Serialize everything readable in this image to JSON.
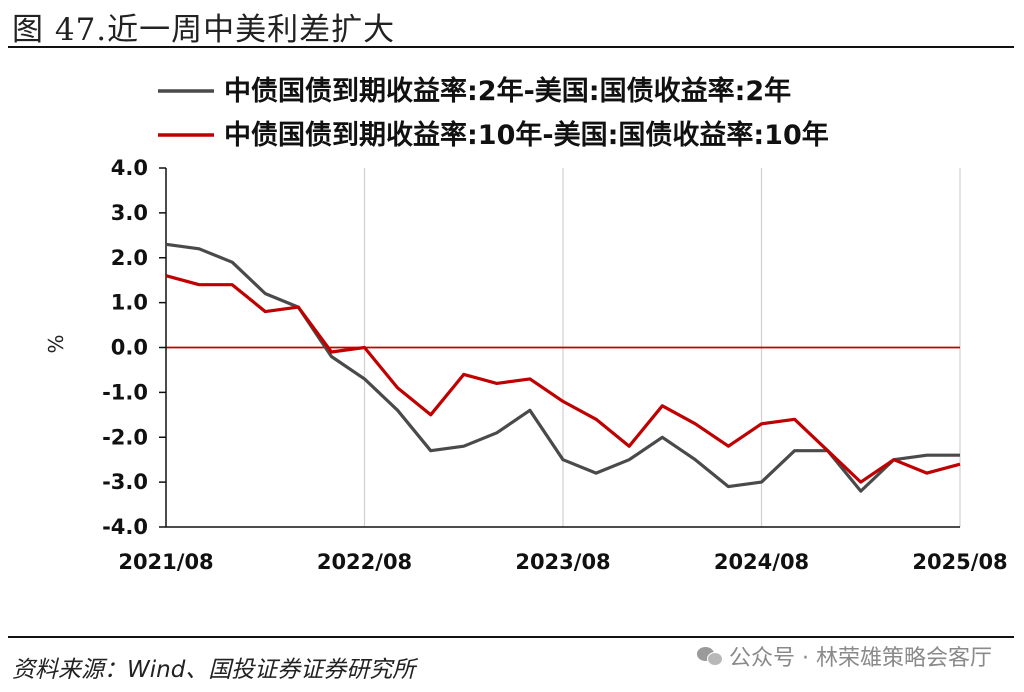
{
  "figure": {
    "title": "图 47.近一周中美利差扩大",
    "source": "资料来源：Wind、国投证券证券研究所",
    "watermark": "公众号 · 林荣雄策略会客厅"
  },
  "chart_data": {
    "type": "line",
    "ylabel": "%",
    "ylim": [
      -4.0,
      4.0
    ],
    "yticks": [
      "4.0",
      "3.0",
      "2.0",
      "1.0",
      "0.0",
      "-1.0",
      "-2.0",
      "-3.0",
      "-4.0"
    ],
    "xticks": [
      "2021/08",
      "2022/08",
      "2023/08",
      "2024/08",
      "2025/08"
    ],
    "grid": "vertical",
    "legend_position": "top",
    "colors": {
      "series_2y": "#4a4a4a",
      "series_10y": "#c00000",
      "zero_line": "#c00000"
    },
    "x": [
      "2021/08",
      "2021/10",
      "2021/12",
      "2022/02",
      "2022/04",
      "2022/06",
      "2022/08",
      "2022/10",
      "2022/12",
      "2023/02",
      "2023/04",
      "2023/06",
      "2023/08",
      "2023/10",
      "2023/12",
      "2024/02",
      "2024/04",
      "2024/06",
      "2024/08",
      "2024/10",
      "2024/12",
      "2025/02",
      "2025/04",
      "2025/06",
      "2025/08"
    ],
    "series": [
      {
        "name": "中债国债到期收益率:2年-美国:国债收益率:2年",
        "values": [
          2.3,
          2.2,
          1.9,
          1.2,
          0.9,
          -0.2,
          -0.7,
          -1.4,
          -2.3,
          -2.2,
          -1.9,
          -1.4,
          -2.5,
          -2.8,
          -2.5,
          -2.0,
          -2.5,
          -3.1,
          -3.0,
          -2.3,
          -2.3,
          -3.2,
          -2.5,
          -2.4,
          -2.4
        ]
      },
      {
        "name": "中债国债到期收益率:10年-美国:国债收益率:10年",
        "values": [
          1.6,
          1.4,
          1.4,
          0.8,
          0.9,
          -0.1,
          0.0,
          -0.9,
          -1.5,
          -0.6,
          -0.8,
          -0.7,
          -1.2,
          -1.6,
          -2.2,
          -1.3,
          -1.7,
          -2.2,
          -1.7,
          -1.6,
          -2.3,
          -3.0,
          -2.5,
          -2.8,
          -2.6
        ]
      }
    ]
  }
}
